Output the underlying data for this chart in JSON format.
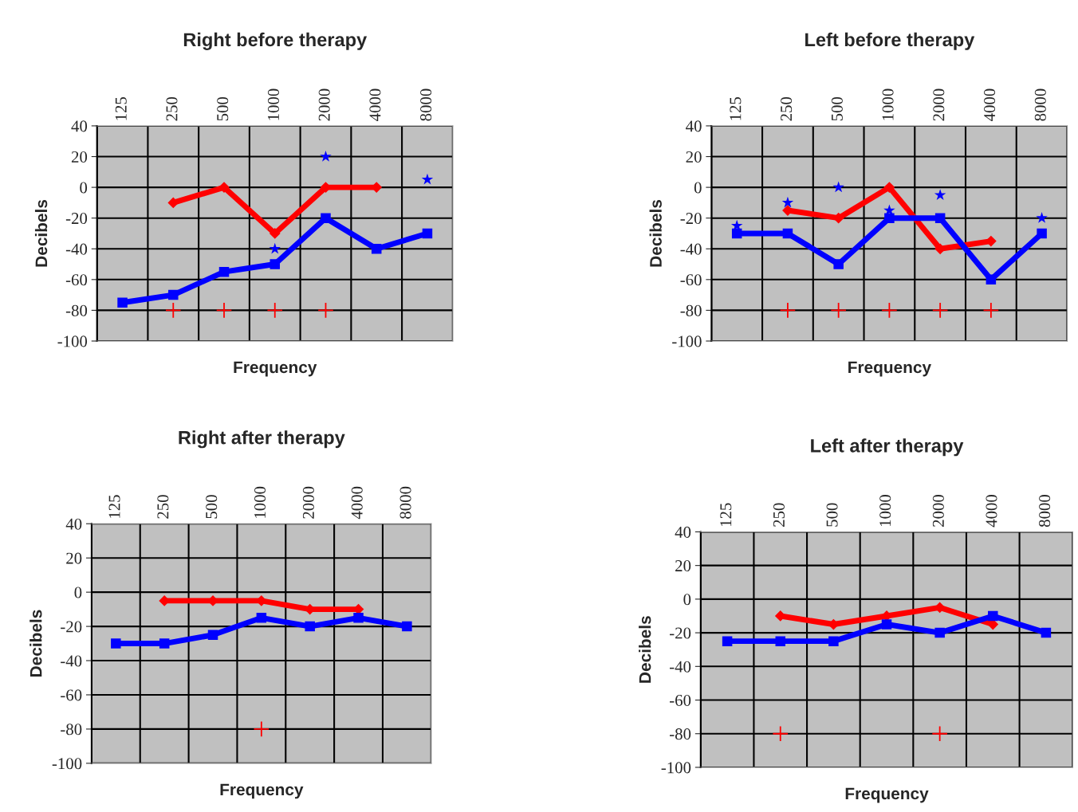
{
  "chart_data": [
    {
      "type": "line",
      "title": "Right before therapy",
      "xlabel": "Frequency",
      "ylabel": "Decibels",
      "categories": [
        "125",
        "250",
        "500",
        "1000",
        "2000",
        "4000",
        "8000"
      ],
      "ylim": [
        -100,
        40
      ],
      "yticks": [
        -100,
        -80,
        -60,
        -40,
        -20,
        0,
        20,
        40
      ],
      "grid": true,
      "legend": false,
      "series": [
        {
          "color": "#ff0000",
          "marker": "diamond",
          "values": [
            null,
            -10,
            0,
            -30,
            0,
            0,
            null
          ]
        },
        {
          "color": "#0000ff",
          "marker": "square",
          "values": [
            -75,
            -70,
            -55,
            -50,
            -20,
            -40,
            -30
          ]
        },
        {
          "type": "scatter",
          "color": "#0000ff",
          "marker": "star",
          "values": [
            null,
            null,
            null,
            -40,
            20,
            null,
            5
          ]
        },
        {
          "type": "scatter",
          "color": "#ff0000",
          "marker": "cross",
          "values": [
            null,
            -80,
            -80,
            -80,
            -80,
            null,
            null
          ]
        }
      ]
    },
    {
      "type": "line",
      "title": "Left before therapy",
      "xlabel": "Frequency",
      "ylabel": "Decibels",
      "categories": [
        "125",
        "250",
        "500",
        "1000",
        "2000",
        "4000",
        "8000"
      ],
      "ylim": [
        -100,
        40
      ],
      "yticks": [
        -100,
        -80,
        -60,
        -40,
        -20,
        0,
        20,
        40
      ],
      "grid": true,
      "legend": false,
      "series": [
        {
          "color": "#ff0000",
          "marker": "diamond",
          "values": [
            null,
            -15,
            -20,
            0,
            -40,
            -35,
            null
          ]
        },
        {
          "color": "#0000ff",
          "marker": "square",
          "values": [
            -30,
            -30,
            -50,
            -20,
            -20,
            -60,
            -30
          ]
        },
        {
          "type": "scatter",
          "color": "#0000ff",
          "marker": "star",
          "values": [
            -25,
            -10,
            0,
            -15,
            -5,
            null,
            -20
          ]
        },
        {
          "type": "scatter",
          "color": "#ff0000",
          "marker": "cross",
          "values": [
            null,
            -80,
            -80,
            -80,
            -80,
            -80,
            null
          ]
        }
      ]
    },
    {
      "type": "line",
      "title": "Right after therapy",
      "xlabel": "Frequency",
      "ylabel": "Decibels",
      "categories": [
        "125",
        "250",
        "500",
        "1000",
        "2000",
        "4000",
        "8000"
      ],
      "ylim": [
        -100,
        40
      ],
      "yticks": [
        -100,
        -80,
        -60,
        -40,
        -20,
        0,
        20,
        40
      ],
      "grid": true,
      "legend": false,
      "series": [
        {
          "color": "#ff0000",
          "marker": "diamond",
          "values": [
            null,
            -5,
            -5,
            -5,
            -10,
            -10,
            null
          ]
        },
        {
          "color": "#0000ff",
          "marker": "square",
          "values": [
            -30,
            -30,
            -25,
            -15,
            -20,
            -15,
            -20
          ]
        },
        {
          "type": "scatter",
          "color": "#ff0000",
          "marker": "cross",
          "values": [
            null,
            null,
            null,
            -80,
            null,
            null,
            null
          ]
        }
      ]
    },
    {
      "type": "line",
      "title": "Left after therapy",
      "xlabel": "Frequency",
      "ylabel": "Decibels",
      "categories": [
        "125",
        "250",
        "500",
        "1000",
        "2000",
        "4000",
        "8000"
      ],
      "ylim": [
        -100,
        40
      ],
      "yticks": [
        -100,
        -80,
        -60,
        -40,
        -20,
        0,
        20,
        40
      ],
      "grid": true,
      "legend": false,
      "series": [
        {
          "color": "#ff0000",
          "marker": "diamond",
          "values": [
            null,
            -10,
            -15,
            -10,
            -5,
            -15,
            null
          ]
        },
        {
          "color": "#0000ff",
          "marker": "square",
          "values": [
            -25,
            -25,
            -25,
            -15,
            -20,
            -10,
            -20
          ]
        },
        {
          "type": "scatter",
          "color": "#ff0000",
          "marker": "cross",
          "values": [
            null,
            -80,
            null,
            null,
            -80,
            null,
            null
          ]
        }
      ]
    }
  ]
}
